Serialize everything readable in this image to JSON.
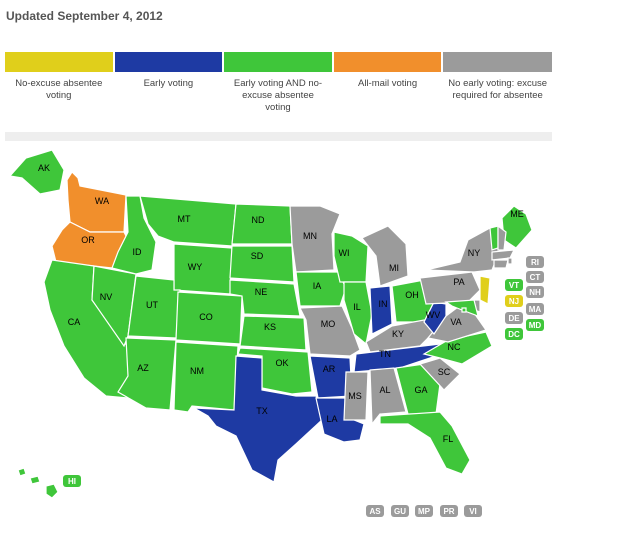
{
  "updated": "Updated September 4, 2012",
  "colors": {
    "no_excuse": "#e0cf1b",
    "early": "#1e3aa3",
    "both": "#3fc63a",
    "mail": "#f18f2c",
    "none": "#9b9b9b"
  },
  "legend": [
    {
      "label": "No-excuse absentee voting",
      "category": "no_excuse"
    },
    {
      "label": "Early voting",
      "category": "early"
    },
    {
      "label": "Early voting AND no-excuse absentee voting",
      "category": "both"
    },
    {
      "label": "All-mail voting",
      "category": "mail"
    },
    {
      "label": "No early voting: excuse required for absentee",
      "category": "none"
    }
  ],
  "states": [
    {
      "abbr": "AK",
      "category": "both"
    },
    {
      "abbr": "HI",
      "category": "both"
    },
    {
      "abbr": "WA",
      "category": "mail"
    },
    {
      "abbr": "OR",
      "category": "mail"
    },
    {
      "abbr": "CA",
      "category": "both"
    },
    {
      "abbr": "NV",
      "category": "both"
    },
    {
      "abbr": "ID",
      "category": "both"
    },
    {
      "abbr": "MT",
      "category": "both"
    },
    {
      "abbr": "WY",
      "category": "both"
    },
    {
      "abbr": "UT",
      "category": "both"
    },
    {
      "abbr": "AZ",
      "category": "both"
    },
    {
      "abbr": "CO",
      "category": "both"
    },
    {
      "abbr": "NM",
      "category": "both"
    },
    {
      "abbr": "ND",
      "category": "both"
    },
    {
      "abbr": "SD",
      "category": "both"
    },
    {
      "abbr": "NE",
      "category": "both"
    },
    {
      "abbr": "KS",
      "category": "both"
    },
    {
      "abbr": "OK",
      "category": "both"
    },
    {
      "abbr": "TX",
      "category": "early"
    },
    {
      "abbr": "MN",
      "category": "none"
    },
    {
      "abbr": "IA",
      "category": "both"
    },
    {
      "abbr": "MO",
      "category": "none"
    },
    {
      "abbr": "AR",
      "category": "early"
    },
    {
      "abbr": "LA",
      "category": "early"
    },
    {
      "abbr": "WI",
      "category": "both"
    },
    {
      "abbr": "IL",
      "category": "both"
    },
    {
      "abbr": "MI",
      "category": "none"
    },
    {
      "abbr": "IN",
      "category": "early"
    },
    {
      "abbr": "OH",
      "category": "both"
    },
    {
      "abbr": "KY",
      "category": "none"
    },
    {
      "abbr": "TN",
      "category": "early"
    },
    {
      "abbr": "MS",
      "category": "none"
    },
    {
      "abbr": "AL",
      "category": "none"
    },
    {
      "abbr": "GA",
      "category": "both"
    },
    {
      "abbr": "FL",
      "category": "both"
    },
    {
      "abbr": "SC",
      "category": "none"
    },
    {
      "abbr": "NC",
      "category": "both"
    },
    {
      "abbr": "VA",
      "category": "none"
    },
    {
      "abbr": "WV",
      "category": "early"
    },
    {
      "abbr": "PA",
      "category": "none"
    },
    {
      "abbr": "NY",
      "category": "none"
    },
    {
      "abbr": "ME",
      "category": "both"
    },
    {
      "abbr": "VT",
      "category": "both"
    },
    {
      "abbr": "NH",
      "category": "none"
    },
    {
      "abbr": "MA",
      "category": "none"
    },
    {
      "abbr": "RI",
      "category": "none"
    },
    {
      "abbr": "CT",
      "category": "none"
    },
    {
      "abbr": "NJ",
      "category": "no_excuse"
    },
    {
      "abbr": "DE",
      "category": "none"
    },
    {
      "abbr": "MD",
      "category": "both"
    },
    {
      "abbr": "DC",
      "category": "both"
    }
  ],
  "territories": [
    {
      "abbr": "AS",
      "category": "none"
    },
    {
      "abbr": "GU",
      "category": "none"
    },
    {
      "abbr": "MP",
      "category": "none"
    },
    {
      "abbr": "PR",
      "category": "none"
    },
    {
      "abbr": "VI",
      "category": "none"
    }
  ]
}
